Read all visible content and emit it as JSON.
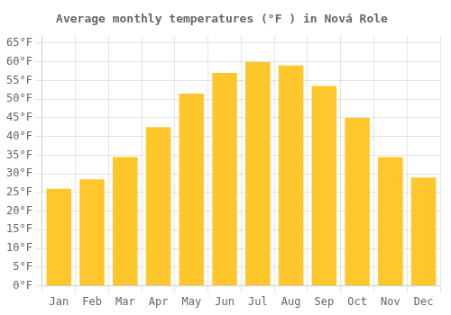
{
  "chart_data": {
    "type": "bar",
    "title": "Average monthly temperatures (°F ) in Nová Role",
    "categories": [
      "Jan",
      "Feb",
      "Mar",
      "Apr",
      "May",
      "Jun",
      "Jul",
      "Aug",
      "Sep",
      "Oct",
      "Nov",
      "Dec"
    ],
    "values": [
      26,
      28.5,
      34.5,
      42.5,
      51.5,
      57,
      60,
      59,
      53.5,
      45,
      34.5,
      29
    ],
    "color": "#FFC72C",
    "ylim": [
      0,
      67
    ],
    "yticks": [
      {
        "value": 0,
        "label": "0°F"
      },
      {
        "value": 5,
        "label": "5°F"
      },
      {
        "value": 10,
        "label": "10°F"
      },
      {
        "value": 15,
        "label": "15°F"
      },
      {
        "value": 20,
        "label": "20°F"
      },
      {
        "value": 25,
        "label": "25°F"
      },
      {
        "value": 30,
        "label": "30°F"
      },
      {
        "value": 35,
        "label": "35°F"
      },
      {
        "value": 40,
        "label": "40°F"
      },
      {
        "value": 45,
        "label": "45°F"
      },
      {
        "value": 50,
        "label": "50°F"
      },
      {
        "value": 55,
        "label": "55°F"
      },
      {
        "value": 60,
        "label": "60°F"
      },
      {
        "value": 65,
        "label": "65°F"
      }
    ],
    "grid": true
  }
}
